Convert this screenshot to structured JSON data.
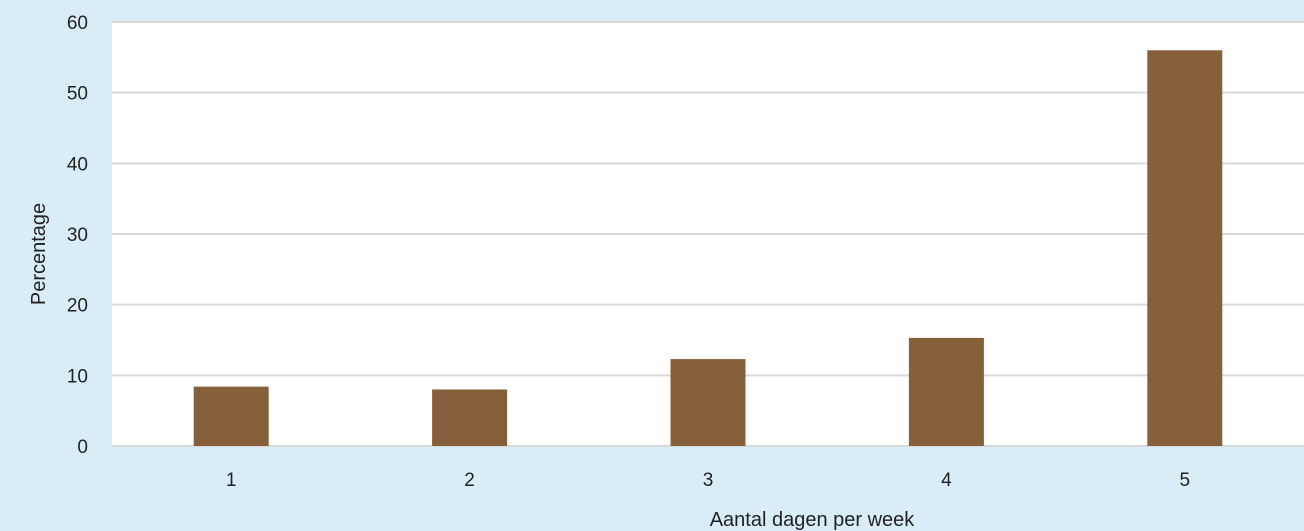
{
  "chart_data": {
    "type": "bar",
    "categories": [
      "1",
      "2",
      "3",
      "4",
      "5"
    ],
    "values": [
      8.4,
      8.0,
      12.3,
      15.3,
      56.0
    ],
    "xlabel": "Aantal dagen per week",
    "ylabel": "Percentage",
    "ylim": [
      0,
      60
    ],
    "yticks": [
      0,
      10,
      20,
      30,
      40,
      50,
      60
    ],
    "grid": "horizontal",
    "colors": {
      "bar": "#86603b",
      "background": "#d9edf8",
      "plot_area": "#ffffff",
      "gridline": "#d9d9d9"
    }
  }
}
